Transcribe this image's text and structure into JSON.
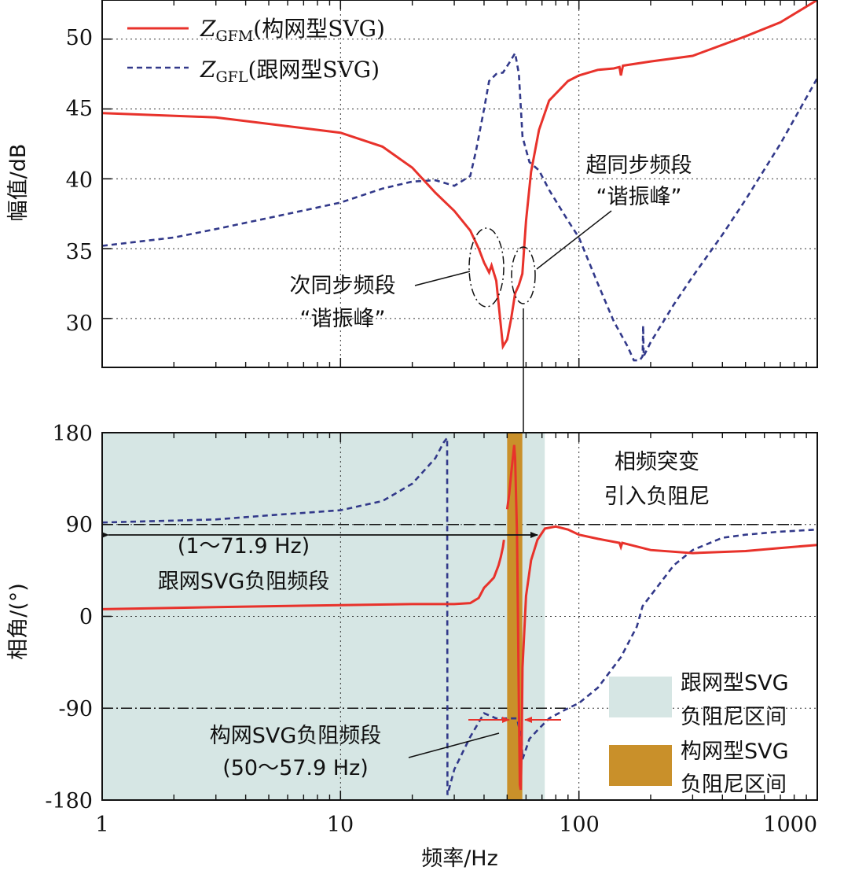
{
  "chart_data": {
    "type": "line",
    "x_scale": "log",
    "xlabel": "频率/Hz",
    "xlim": [
      1,
      1000
    ],
    "x_ticks": [
      "1",
      "10",
      "100",
      "1000"
    ],
    "colors": {
      "gfm": "#e8322b",
      "gfl": "#32398a",
      "band_gfl": "#d6e6e4",
      "band_gfm": "#c9902a",
      "arrow": "#e8322b"
    },
    "legend": [
      {
        "sym": "Z",
        "sub": "GFM",
        "text": "(构网型SVG)",
        "style": "solid"
      },
      {
        "sym": "Z",
        "sub": "GFL",
        "text": "(跟网型SVG)",
        "style": "dashed"
      }
    ],
    "magnitude": {
      "ylabel": "幅值/dB",
      "ylim": [
        26.5,
        52.8
      ],
      "y_ticks": [
        "30",
        "35",
        "40",
        "45",
        "50"
      ],
      "series": [
        {
          "name": "Z_GFM(构网型SVG)",
          "points": [
            [
              1,
              44.7
            ],
            [
              3,
              44.4
            ],
            [
              10,
              43.3
            ],
            [
              15,
              42.3
            ],
            [
              20,
              40.8
            ],
            [
              25,
              39.0
            ],
            [
              30,
              37.7
            ],
            [
              35,
              36.3
            ],
            [
              38,
              35.0
            ],
            [
              40,
              34.0
            ],
            [
              42,
              33.3
            ],
            [
              43,
              33.8
            ],
            [
              45,
              32.7
            ],
            [
              48,
              28.0
            ],
            [
              50,
              28.5
            ],
            [
              52,
              30.0
            ],
            [
              54,
              31.8
            ],
            [
              56,
              32.4
            ],
            [
              57.9,
              33.2
            ],
            [
              60,
              37.0
            ],
            [
              63,
              40.5
            ],
            [
              68,
              43.5
            ],
            [
              75,
              45.6
            ],
            [
              90,
              47.0
            ],
            [
              100,
              47.4
            ],
            [
              120,
              47.8
            ],
            [
              140,
              47.9
            ],
            [
              148,
              48.0
            ],
            [
              150,
              47.4
            ],
            [
              153,
              48.1
            ],
            [
              200,
              48.4
            ],
            [
              300,
              48.8
            ],
            [
              500,
              50.2
            ],
            [
              700,
              51.2
            ],
            [
              1000,
              52.8
            ]
          ]
        },
        {
          "name": "Z_GFL(跟网型SVG)",
          "points": [
            [
              1,
              35.2
            ],
            [
              2,
              35.8
            ],
            [
              3,
              36.4
            ],
            [
              5,
              37.2
            ],
            [
              10,
              38.3
            ],
            [
              15,
              39.3
            ],
            [
              20,
              39.8
            ],
            [
              25,
              39.9
            ],
            [
              30,
              39.5
            ],
            [
              35,
              40.2
            ],
            [
              37,
              42.0
            ],
            [
              40,
              45.0
            ],
            [
              42,
              47.0
            ],
            [
              45,
              47.5
            ],
            [
              48,
              47.6
            ],
            [
              51,
              48.3
            ],
            [
              54,
              49.0
            ],
            [
              56,
              47.5
            ],
            [
              58,
              43.0
            ],
            [
              62,
              41.2
            ],
            [
              68,
              40.6
            ],
            [
              75,
              39.2
            ],
            [
              90,
              37.0
            ],
            [
              100,
              35.8
            ],
            [
              120,
              32.5
            ],
            [
              140,
              29.8
            ],
            [
              160,
              28.0
            ],
            [
              170,
              27.0
            ],
            [
              180,
              27.0
            ],
            [
              185,
              27.3
            ],
            [
              186,
              29.5
            ],
            [
              187,
              27.3
            ],
            [
              200,
              28.3
            ],
            [
              250,
              31.0
            ],
            [
              300,
              33.0
            ],
            [
              400,
              36.0
            ],
            [
              500,
              38.5
            ],
            [
              700,
              42.5
            ],
            [
              1000,
              47.2
            ]
          ]
        }
      ],
      "annotations": [
        {
          "id": "sub",
          "lines": [
            "次同步频段",
            "“谐振峰”"
          ]
        },
        {
          "id": "super",
          "lines": [
            "超同步频段",
            "“谐振峰”"
          ]
        }
      ]
    },
    "phase": {
      "ylabel": "相角/(°)",
      "ylim": [
        -180,
        180
      ],
      "y_ticks": [
        "-180",
        "-90",
        "0",
        "90",
        "180"
      ],
      "series": [
        {
          "name": "Z_GFM",
          "segments": [
            [
              [
                1,
                7
              ],
              [
                3,
                9
              ],
              [
                10,
                11
              ],
              [
                20,
                12
              ],
              [
                30,
                12
              ],
              [
                35,
                13
              ],
              [
                38,
                18
              ],
              [
                40,
                28
              ],
              [
                42,
                33
              ],
              [
                44,
                38
              ],
              [
                46,
                50
              ],
              [
                47,
                58
              ],
              [
                48,
                68
              ],
              [
                48.5,
                75
              ]
            ],
            [
              [
                50,
                105
              ],
              [
                51,
                120
              ],
              [
                52,
                140
              ],
              [
                53,
                158
              ],
              [
                53.5,
                168
              ],
              [
                54,
                155
              ],
              [
                55,
                80
              ],
              [
                55.5,
                0
              ],
              [
                56,
                -90
              ],
              [
                56.5,
                -165
              ],
              [
                57,
                -170
              ],
              [
                57.5,
                -130
              ],
              [
                58,
                -50
              ],
              [
                60,
                20
              ],
              [
                63,
                55
              ],
              [
                67,
                75
              ],
              [
                72,
                86
              ],
              [
                80,
                88
              ],
              [
                90,
                85
              ],
              [
                100,
                80
              ],
              [
                120,
                76
              ],
              [
                148,
                72
              ],
              [
                150,
                68
              ],
              [
                152,
                72
              ],
              [
                200,
                65
              ],
              [
                300,
                62
              ],
              [
                500,
                64
              ],
              [
                700,
                67
              ],
              [
                1000,
                70
              ]
            ]
          ]
        },
        {
          "name": "Z_GFL",
          "segments": [
            [
              [
                1,
                92
              ],
              [
                3,
                95
              ],
              [
                5,
                99
              ],
              [
                10,
                104
              ],
              [
                15,
                113
              ],
              [
                20,
                130
              ],
              [
                25,
                155
              ],
              [
                27,
                170
              ],
              [
                28,
                175
              ],
              [
                28.1,
                -175
              ],
              [
                30,
                -150
              ],
              [
                35,
                -118
              ],
              [
                40,
                -95
              ],
              [
                45,
                -100
              ],
              [
                50,
                -100
              ],
              [
                55,
                -100
              ],
              [
                57.5,
                -120
              ],
              [
                58,
                -140
              ],
              [
                59,
                -135
              ],
              [
                62,
                -120
              ],
              [
                68,
                -110
              ],
              [
                75,
                -100
              ],
              [
                90,
                -90
              ],
              [
                100,
                -85
              ],
              [
                120,
                -70
              ],
              [
                150,
                -40
              ],
              [
                175,
                -10
              ],
              [
                185,
                10
              ],
              [
                250,
                50
              ],
              [
                300,
                65
              ],
              [
                400,
                77
              ],
              [
                500,
                80
              ],
              [
                700,
                83
              ],
              [
                1000,
                85
              ]
            ]
          ]
        }
      ],
      "hlines": [
        90,
        -90
      ],
      "bands": [
        {
          "name": "跟网型SVG负阻尼区间",
          "from": 1,
          "to": 71.9
        },
        {
          "name": "构网型SVG负阻尼区间",
          "from": 50,
          "to": 57.9
        }
      ],
      "annotations": [
        {
          "id": "range_gfl",
          "lines": [
            "(1～71.9 Hz)",
            "跟网SVG负阻频段"
          ]
        },
        {
          "id": "jump",
          "lines": [
            "相频突变",
            "引入负阻尼"
          ]
        },
        {
          "id": "range_gfm",
          "lines": [
            "构网SVG负阻频段",
            "(50～57.9 Hz)"
          ]
        }
      ],
      "legend": [
        {
          "lines": [
            "跟网型SVG",
            "负阻尼区间"
          ],
          "color": "#d6e6e4"
        },
        {
          "lines": [
            "构网型SVG",
            "负阻尼区间"
          ],
          "color": "#c9902a"
        }
      ]
    }
  }
}
